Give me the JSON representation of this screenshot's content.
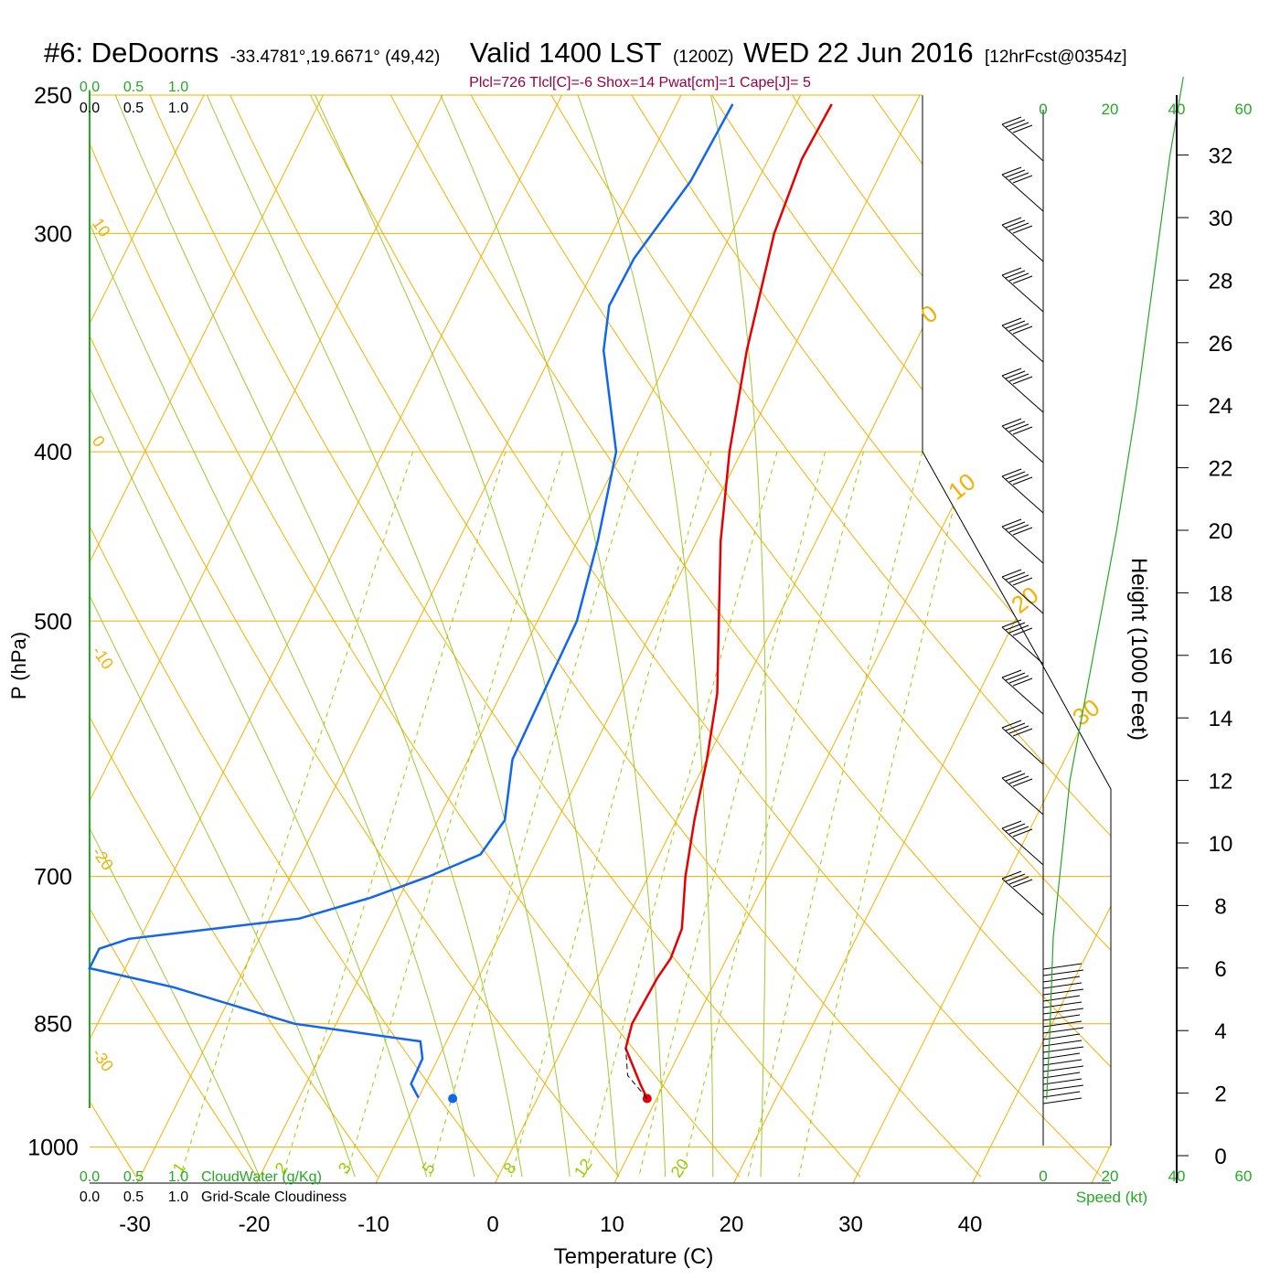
{
  "header": {
    "station": "#6: DeDoorns",
    "coords": "-33.4781°,19.6671° (49,42)",
    "valid": "Valid 1400 LST",
    "zulu": "(1200Z)",
    "date": "WED 22 Jun 2016",
    "forecast": "[12hrFcst@0354z]",
    "stats": "Plcl=726 Tlcl[C]=-6 Shox=14 Pwat[cm]=1 Cape[J]= 5"
  },
  "colors": {
    "isobar": "#f5b000",
    "isotherm": "#f5b000",
    "dry_adiabat": "#f5b000",
    "moist_adiabat": "#99cc33",
    "mixing_ratio": "#99cc00",
    "temperature": "#e60000",
    "dewpoint": "#1166ee",
    "cloud_axis": "#22aa22",
    "height_curve": "#22aa22",
    "barbs": "#000000"
  },
  "cloud_scale": {
    "top_green": [
      "0.0",
      "0.5",
      "1.0"
    ],
    "top_black": [
      "0.0",
      "0.5",
      "1.0"
    ],
    "bottom_green": [
      "0.0",
      "0.5",
      "1.0"
    ],
    "bottom_black": [
      "0.0",
      "0.5",
      "1.0"
    ],
    "cloudwater_label": "CloudWater (g/Kg)",
    "cloudiness_label": "Grid-Scale Cloudiness"
  },
  "chart_data": {
    "type": "skew-t",
    "xlabel": "Temperature (C)",
    "ylabel": "P (hPa)",
    "xticks": [
      -30,
      -20,
      -10,
      0,
      10,
      20,
      30,
      40
    ],
    "xlim": [
      -33,
      45
    ],
    "pressure_ticks": [
      250,
      300,
      400,
      500,
      700,
      850,
      1000
    ],
    "pressure_range": [
      250,
      1035
    ],
    "skew_labels": {
      "left_isotherms": [
        10,
        0,
        -10,
        -20,
        -30
      ],
      "right_isotherms": [
        0,
        10,
        20,
        30
      ],
      "mixing_ratios_gkg": [
        1,
        2,
        3,
        5,
        8,
        12,
        20
      ]
    },
    "temperature_profile": [
      {
        "p": 253,
        "t": -7
      },
      {
        "p": 272,
        "t": -7.2
      },
      {
        "p": 300,
        "t": -6.4
      },
      {
        "p": 350,
        "t": -3.8
      },
      {
        "p": 400,
        "t": -1.0
      },
      {
        "p": 450,
        "t": 2.0
      },
      {
        "p": 500,
        "t": 5.2
      },
      {
        "p": 550,
        "t": 8.1
      },
      {
        "p": 600,
        "t": 10.0
      },
      {
        "p": 650,
        "t": 11.5
      },
      {
        "p": 700,
        "t": 13.1
      },
      {
        "p": 750,
        "t": 15.0
      },
      {
        "p": 780,
        "t": 15.3
      },
      {
        "p": 800,
        "t": 15.0
      },
      {
        "p": 850,
        "t": 14.8
      },
      {
        "p": 878,
        "t": 15.3
      },
      {
        "p": 920,
        "t": 18.0
      },
      {
        "p": 938,
        "t": 19.2
      }
    ],
    "dewpoint_profile": [
      {
        "p": 253,
        "t": -15.3
      },
      {
        "p": 280,
        "t": -15.6
      },
      {
        "p": 310,
        "t": -17.1
      },
      {
        "p": 330,
        "t": -17.2
      },
      {
        "p": 350,
        "t": -15.8
      },
      {
        "p": 400,
        "t": -10.5
      },
      {
        "p": 450,
        "t": -8.3
      },
      {
        "p": 500,
        "t": -6.7
      },
      {
        "p": 550,
        "t": -6.5
      },
      {
        "p": 600,
        "t": -6.3
      },
      {
        "p": 650,
        "t": -4.4
      },
      {
        "p": 680,
        "t": -5.0
      },
      {
        "p": 700,
        "t": -8.4
      },
      {
        "p": 720,
        "t": -12.4
      },
      {
        "p": 740,
        "t": -17.5
      },
      {
        "p": 760,
        "t": -30.9
      },
      {
        "p": 770,
        "t": -33.0
      },
      {
        "p": 790,
        "t": -33.0
      },
      {
        "p": 810,
        "t": -25.2
      },
      {
        "p": 850,
        "t": -13.5
      },
      {
        "p": 870,
        "t": -2.2
      },
      {
        "p": 890,
        "t": -1.3
      },
      {
        "p": 920,
        "t": -1.2
      },
      {
        "p": 937,
        "t": 0
      }
    ],
    "surface_temperature": {
      "p": 938,
      "t": 19.2
    },
    "surface_dewpoint": {
      "p": 938,
      "t": 2.9
    },
    "height_axis": {
      "label": "Height (1000 Feet)",
      "ticks": [
        0,
        2,
        4,
        6,
        8,
        10,
        12,
        14,
        16,
        18,
        20,
        22,
        24,
        26,
        28,
        30,
        32
      ]
    },
    "wind": {
      "speed_label": "Speed (kt)",
      "speed_ticks_top": [
        0,
        20,
        40,
        60
      ],
      "speed_ticks_bottom": [
        0,
        20,
        40,
        60
      ],
      "speed_profile": [
        {
          "kft": 1.8,
          "kt": 1
        },
        {
          "kft": 4,
          "kt": 2
        },
        {
          "kft": 7,
          "kt": 3
        },
        {
          "kft": 12,
          "kt": 8
        },
        {
          "kft": 16,
          "kt": 15
        },
        {
          "kft": 20,
          "kt": 22
        },
        {
          "kft": 24,
          "kt": 28
        },
        {
          "kft": 28,
          "kt": 33
        },
        {
          "kft": 32,
          "kt": 38
        },
        {
          "kft": 34.5,
          "kt": 42
        }
      ]
    }
  }
}
